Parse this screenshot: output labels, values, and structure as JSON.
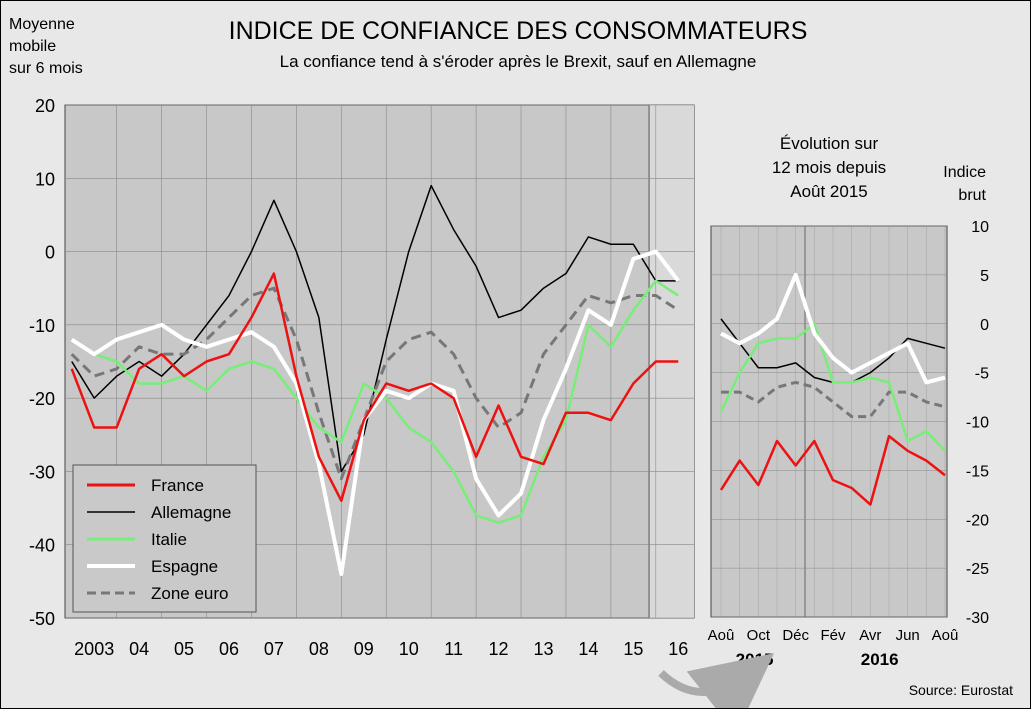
{
  "header": {
    "title": "INDICE DE CONFIANCE DES CONSOMMATEURS",
    "subtitle": "La confiance tend à s'éroder après le Brexit, sauf en Allemagne",
    "left_note": [
      "Moyenne",
      "mobile",
      "sur 6 mois"
    ],
    "source": "Source: Eurostat"
  },
  "colors": {
    "France": "#ee1111",
    "Allemagne": "#000000",
    "Italie": "#77ee77",
    "Espagne": "#ffffff",
    "Zone euro": "#777777"
  },
  "chart_data": [
    {
      "type": "line",
      "ylim": [
        -50,
        20
      ],
      "yticks": [
        20,
        10,
        0,
        -10,
        -20,
        -30,
        -40,
        -50
      ],
      "x_tick_labels": [
        "2003",
        "04",
        "05",
        "06",
        "07",
        "08",
        "09",
        "10",
        "11",
        "12",
        "13",
        "14",
        "15",
        "16"
      ],
      "x": [
        2003.0,
        2003.5,
        2004.0,
        2004.5,
        2005.0,
        2005.5,
        2006.0,
        2006.5,
        2007.0,
        2007.5,
        2008.0,
        2008.5,
        2009.0,
        2009.5,
        2010.0,
        2010.5,
        2011.0,
        2011.5,
        2012.0,
        2012.5,
        2013.0,
        2013.5,
        2014.0,
        2014.5,
        2015.0,
        2015.5,
        2016.0,
        2016.5
      ],
      "series": [
        {
          "name": "France",
          "style": "solid",
          "values": [
            -16,
            -24,
            -24,
            -16,
            -14,
            -17,
            -15,
            -14,
            -9,
            -3,
            -17,
            -28,
            -34,
            -23,
            -18,
            -19,
            -18,
            -20,
            -28,
            -21,
            -28,
            -29,
            -22,
            -22,
            -23,
            -18,
            -15,
            -15
          ]
        },
        {
          "name": "Allemagne",
          "style": "solid",
          "values": [
            -15,
            -20,
            -17,
            -15,
            -17,
            -14,
            -10,
            -6,
            0,
            7,
            0,
            -9,
            -30,
            -25,
            -12,
            0,
            9,
            3,
            -2,
            -9,
            -8,
            -5,
            -3,
            2,
            1,
            1,
            -4,
            -4
          ]
        },
        {
          "name": "Italie",
          "style": "solid",
          "values": [
            -12,
            -14,
            -15,
            -18,
            -18,
            -17,
            -19,
            -16,
            -15,
            -16,
            -20,
            -24,
            -26,
            -18,
            -20,
            -24,
            -26,
            -30,
            -36,
            -37,
            -36,
            -28,
            -23,
            -10,
            -13,
            -8,
            -4,
            -6
          ]
        },
        {
          "name": "Espagne",
          "style": "solid",
          "values": [
            -12,
            -14,
            -12,
            -11,
            -10,
            -12,
            -13,
            -12,
            -11,
            -13,
            -18,
            -29,
            -44,
            -23,
            -19,
            -20,
            -18,
            -19,
            -31,
            -36,
            -33,
            -23,
            -16,
            -8,
            -10,
            -1,
            0,
            -4
          ]
        },
        {
          "name": "Zone euro",
          "style": "dashed",
          "values": [
            -14,
            -17,
            -16,
            -13,
            -14,
            -14,
            -12,
            -9,
            -6,
            -5,
            -12,
            -22,
            -31,
            -23,
            -15,
            -12,
            -11,
            -14,
            -20,
            -24,
            -22,
            -14,
            -10,
            -6,
            -7,
            -6,
            -6,
            -8
          ]
        }
      ],
      "legend": "bottom-left"
    },
    {
      "type": "line",
      "title": [
        "Évolution sur",
        "12 mois depuis",
        "Août 2015"
      ],
      "ylabel": [
        "Indice",
        "brut"
      ],
      "ylim": [
        -30,
        10
      ],
      "yticks": [
        10,
        5,
        0,
        -5,
        -10,
        -15,
        -20,
        -25,
        -30
      ],
      "x_tick_labels": [
        "Aoû",
        "Oct",
        "Déc",
        "Fév",
        "Avr",
        "Jun",
        "Aoû"
      ],
      "x_year_labels": [
        "2015",
        "2016"
      ],
      "months": [
        "Aoû",
        "Sep",
        "Oct",
        "Nov",
        "Déc",
        "Jan",
        "Fév",
        "Mar",
        "Avr",
        "Mai",
        "Jun",
        "Jul",
        "Aoû"
      ],
      "series": [
        {
          "name": "France",
          "style": "solid",
          "values": [
            -17,
            -14,
            -16.5,
            -12,
            -14.5,
            -12,
            -16,
            -16.8,
            -18.5,
            -11.5,
            -13,
            -14,
            -15.5
          ]
        },
        {
          "name": "Allemagne",
          "style": "solid",
          "values": [
            0.5,
            -2,
            -4.5,
            -4.5,
            -4,
            -5.5,
            -6,
            -6,
            -5,
            -3.5,
            -1.5,
            -2,
            -2.5
          ]
        },
        {
          "name": "Italie",
          "style": "solid",
          "values": [
            -9,
            -5,
            -2,
            -1.5,
            -1.5,
            0,
            -6,
            -6,
            -5.5,
            -6,
            -12,
            -11,
            -13
          ]
        },
        {
          "name": "Espagne",
          "style": "solid",
          "values": [
            -1,
            -2,
            -1,
            0.5,
            5,
            -1,
            -3.5,
            -5,
            -4,
            -3,
            -2,
            -6,
            -5.5
          ]
        },
        {
          "name": "Zone euro",
          "style": "dashed",
          "values": [
            -7,
            -7,
            -8,
            -6.5,
            -6,
            -6.5,
            -8,
            -9.5,
            -9.5,
            -7,
            -7,
            -8,
            -8.5
          ]
        }
      ]
    }
  ]
}
